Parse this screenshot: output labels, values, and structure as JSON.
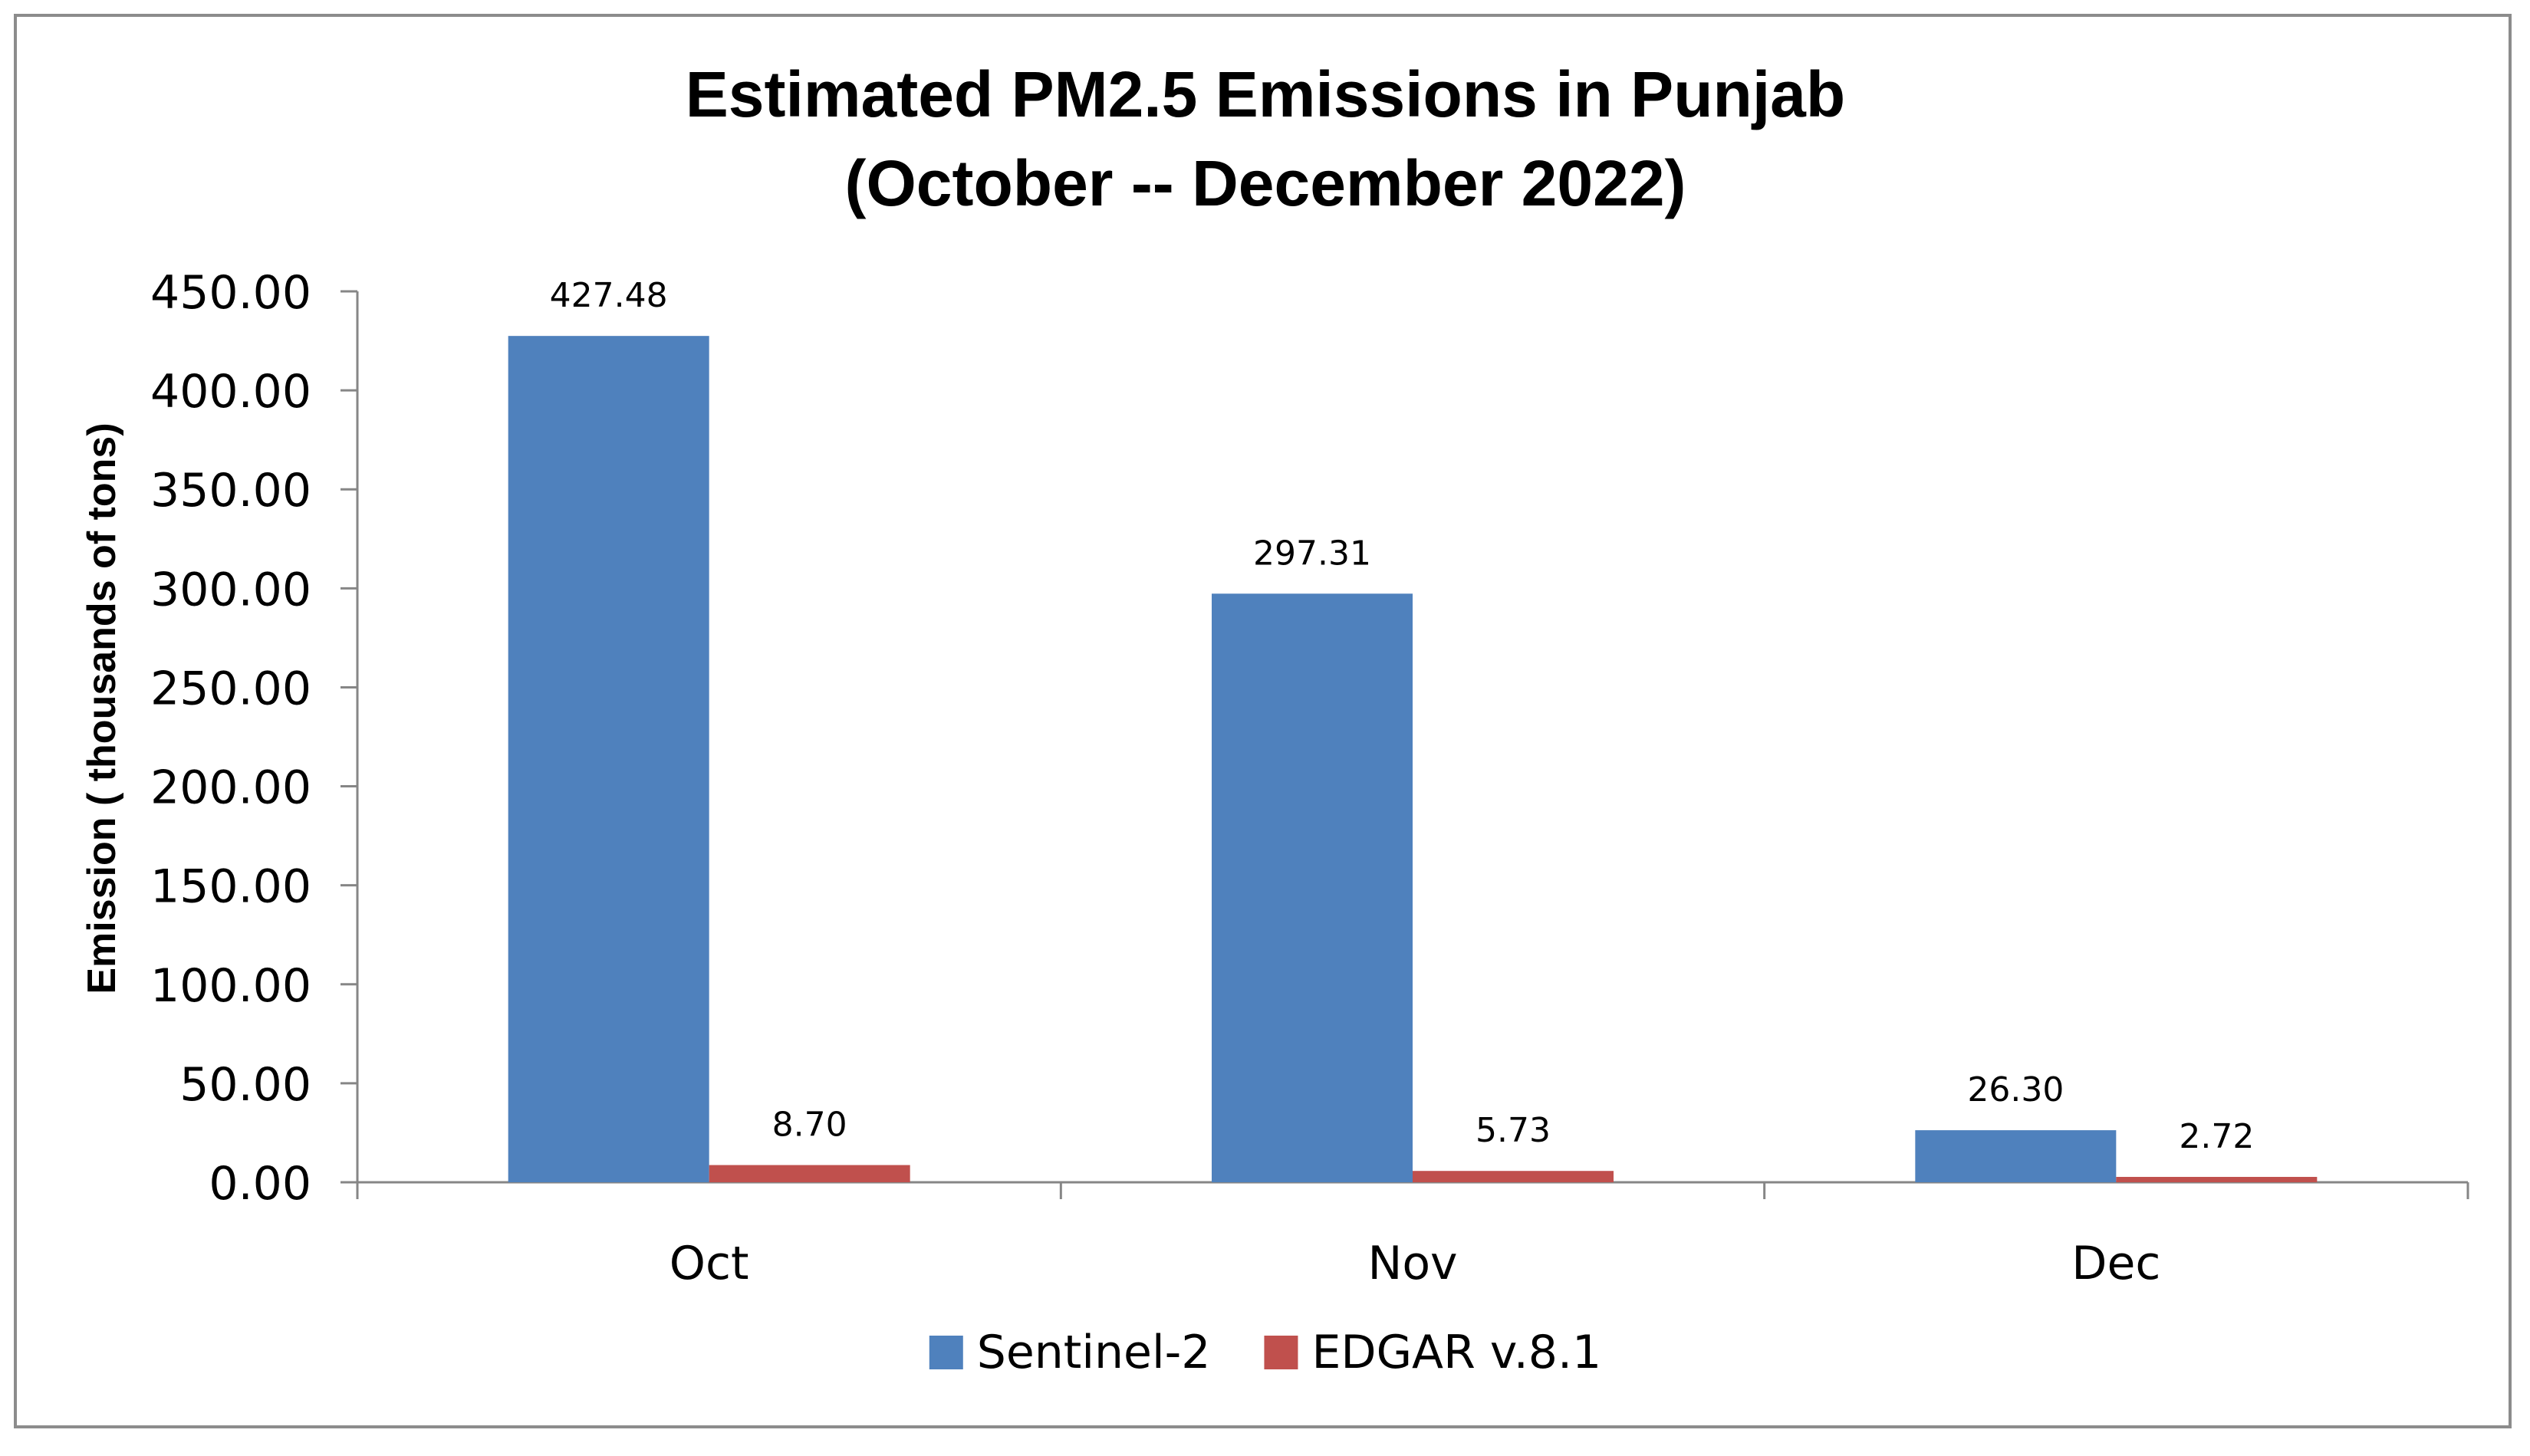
{
  "chart_data": {
    "type": "bar",
    "title_lines": [
      "Estimated PM2.5 Emissions in Punjab",
      "(October -- December 2022)"
    ],
    "xlabel": "",
    "ylabel": "Emission ( thousands of tons)",
    "categories": [
      "Oct",
      "Nov",
      "Dec"
    ],
    "ylim": [
      0,
      450
    ],
    "yticks": [
      0,
      50,
      100,
      150,
      200,
      250,
      300,
      350,
      400,
      450
    ],
    "ytick_labels": [
      "0.00",
      "50.00",
      "100.00",
      "150.00",
      "200.00",
      "250.00",
      "300.00",
      "350.00",
      "400.00",
      "450.00"
    ],
    "series": [
      {
        "name": "Sentinel-2",
        "color": "#4F81BD",
        "values": [
          427.48,
          297.31,
          26.3
        ],
        "labels": [
          "427.48",
          "297.31",
          "26.30"
        ]
      },
      {
        "name": "EDGAR v.8.1",
        "color": "#C0504D",
        "values": [
          8.7,
          5.73,
          2.72
        ],
        "labels": [
          "8.70",
          "5.73",
          "2.72"
        ]
      }
    ],
    "legend_position": "bottom",
    "grid": false
  }
}
